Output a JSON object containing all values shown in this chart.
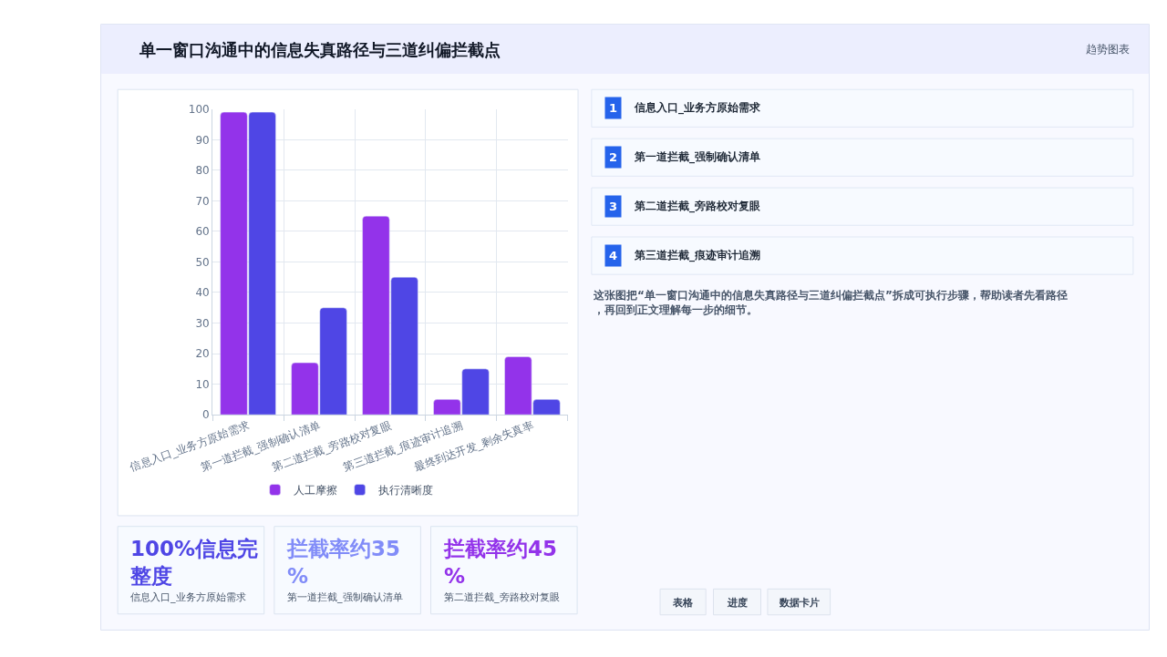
{
  "chart_data": {
    "type": "bar",
    "title": "单一窗口沟通中的信息失真路径与三道纠偏拦截点",
    "categories": [
      "信息入口_业务方原始需求",
      "第一道拦截_强制确认清单",
      "第二道拦截_旁路校对复眼",
      "第三道拦截_痕迹审计追溯",
      "最终到达开发_剩余失真率"
    ],
    "series": [
      {
        "name": "人工摩擦",
        "color": "#9333ea",
        "values": [
          99,
          17,
          65,
          5,
          19
        ]
      },
      {
        "name": "执行清晰度",
        "color": "#4f46e5",
        "values": [
          99,
          35,
          45,
          15,
          5
        ]
      }
    ],
    "ylim": [
      0,
      100
    ],
    "yticks": [
      0,
      10,
      20,
      30,
      40,
      50,
      60,
      70,
      80,
      90,
      100
    ],
    "grid": true,
    "legend": "bottom",
    "annotations": [
      "趋势图表",
      "1",
      "信息入口_业务方原始需求",
      "2",
      "第一道拦截_强制确认清单",
      "3",
      "第二道拦截_旁路校对复眼",
      "4",
      "第三道拦截_痕迹审计追溯",
      "这张图把“单一窗口沟通中的信息失真路径与三道纠偏拦截点”拆成可执行步骤，帮助读者先看路径，再回到正文理解每一步的细节。",
      "100%信息完整度",
      "信息入口_业务方原始需求",
      "拦截率约35%",
      "第一道拦截_强制确认清单",
      "拦截率约45%",
      "第二道拦截_旁路校对复眼",
      "表格",
      "进度",
      "数据卡片"
    ]
  }
}
